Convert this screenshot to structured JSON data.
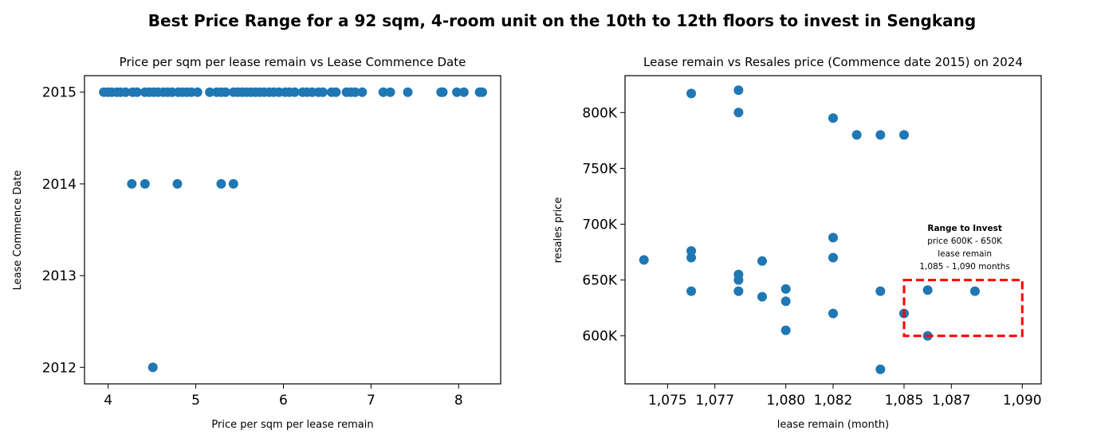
{
  "figure": {
    "title": "Best Price Range for a 92 sqm, 4-room unit on the 10th to 12th floors to invest in Sengkang"
  },
  "chart_data": [
    {
      "type": "scatter",
      "title": "Price per sqm per lease remain vs Lease Commence Date",
      "xlabel": "Price per sqm per lease remain",
      "ylabel": "Lease Commence Date",
      "xlim": [
        3.73,
        8.48
      ],
      "ylim": [
        2011.82,
        2015.18
      ],
      "xticks": [
        4,
        5,
        6,
        7,
        8
      ],
      "xtick_labels": [
        "4",
        "5",
        "6",
        "7",
        "8"
      ],
      "yticks": [
        2012,
        2013,
        2014,
        2015
      ],
      "ytick_labels": [
        "2012",
        "2013",
        "2014",
        "2015"
      ],
      "marker_color": "#1f77b4",
      "points": [
        [
          3.95,
          2015
        ],
        [
          4.0,
          2015
        ],
        [
          4.04,
          2015
        ],
        [
          4.1,
          2015
        ],
        [
          4.14,
          2015
        ],
        [
          4.2,
          2015
        ],
        [
          4.28,
          2015
        ],
        [
          4.33,
          2015
        ],
        [
          4.42,
          2015
        ],
        [
          4.47,
          2015
        ],
        [
          4.52,
          2015
        ],
        [
          4.57,
          2015
        ],
        [
          4.63,
          2015
        ],
        [
          4.68,
          2015
        ],
        [
          4.73,
          2015
        ],
        [
          4.8,
          2015
        ],
        [
          4.85,
          2015
        ],
        [
          4.9,
          2015
        ],
        [
          4.95,
          2015
        ],
        [
          5.02,
          2015
        ],
        [
          5.16,
          2015
        ],
        [
          5.24,
          2015
        ],
        [
          5.29,
          2015
        ],
        [
          5.34,
          2015
        ],
        [
          5.43,
          2015
        ],
        [
          5.48,
          2015
        ],
        [
          5.53,
          2015
        ],
        [
          5.58,
          2015
        ],
        [
          5.63,
          2015
        ],
        [
          5.68,
          2015
        ],
        [
          5.73,
          2015
        ],
        [
          5.78,
          2015
        ],
        [
          5.84,
          2015
        ],
        [
          5.89,
          2015
        ],
        [
          5.95,
          2015
        ],
        [
          6.02,
          2015
        ],
        [
          6.07,
          2015
        ],
        [
          6.13,
          2015
        ],
        [
          6.22,
          2015
        ],
        [
          6.27,
          2015
        ],
        [
          6.33,
          2015
        ],
        [
          6.4,
          2015
        ],
        [
          6.45,
          2015
        ],
        [
          6.55,
          2015
        ],
        [
          6.6,
          2015
        ],
        [
          6.72,
          2015
        ],
        [
          6.77,
          2015
        ],
        [
          6.82,
          2015
        ],
        [
          6.9,
          2015
        ],
        [
          7.14,
          2015
        ],
        [
          7.22,
          2015
        ],
        [
          7.42,
          2015
        ],
        [
          7.8,
          2015
        ],
        [
          7.82,
          2015
        ],
        [
          7.98,
          2015
        ],
        [
          8.06,
          2015
        ],
        [
          8.24,
          2015
        ],
        [
          8.27,
          2015
        ],
        [
          4.27,
          2014
        ],
        [
          4.42,
          2014
        ],
        [
          4.79,
          2014
        ],
        [
          5.29,
          2014
        ],
        [
          5.43,
          2014
        ],
        [
          4.51,
          2012
        ]
      ]
    },
    {
      "type": "scatter",
      "title": "Lease remain vs Resales price (Commence date 2015) on 2024",
      "xlabel": "lease remain (month)",
      "ylabel": "resales price",
      "xlim": [
        1073.2,
        1090.8
      ],
      "ylim": [
        557000,
        833000
      ],
      "xticks": [
        1075,
        1077,
        1080,
        1082,
        1085,
        1087,
        1090
      ],
      "xtick_labels": [
        "1,075",
        "1,077",
        "1,080",
        "1,082",
        "1,085",
        "1,087",
        "1,090"
      ],
      "yticks": [
        600000,
        650000,
        700000,
        750000,
        800000
      ],
      "ytick_labels": [
        "600K",
        "650K",
        "700K",
        "750K",
        "800K"
      ],
      "marker_color": "#1f77b4",
      "points": [
        [
          1074,
          668000
        ],
        [
          1076,
          817000
        ],
        [
          1076,
          676000
        ],
        [
          1076,
          670000
        ],
        [
          1076,
          640000
        ],
        [
          1078,
          820000
        ],
        [
          1078,
          800000
        ],
        [
          1078,
          655000
        ],
        [
          1078,
          650000
        ],
        [
          1078,
          640000
        ],
        [
          1079,
          667000
        ],
        [
          1079,
          635000
        ],
        [
          1080,
          642000
        ],
        [
          1080,
          631000
        ],
        [
          1080,
          605000
        ],
        [
          1082,
          795000
        ],
        [
          1082,
          688000
        ],
        [
          1082,
          670000
        ],
        [
          1082,
          620000
        ],
        [
          1083,
          780000
        ],
        [
          1084,
          780000
        ],
        [
          1084,
          640000
        ],
        [
          1084,
          570000
        ],
        [
          1085,
          780000
        ],
        [
          1085,
          620000
        ],
        [
          1086,
          641000
        ],
        [
          1086,
          600000
        ],
        [
          1088,
          640000
        ]
      ],
      "annotation": {
        "title": "Range to Invest",
        "lines": [
          "price 600K - 650K",
          "lease remain",
          "1,085 - 1,090 months"
        ],
        "box_x": [
          1085,
          1090
        ],
        "box_y": [
          600000,
          650000
        ],
        "box_color": "#ff0000"
      }
    }
  ]
}
